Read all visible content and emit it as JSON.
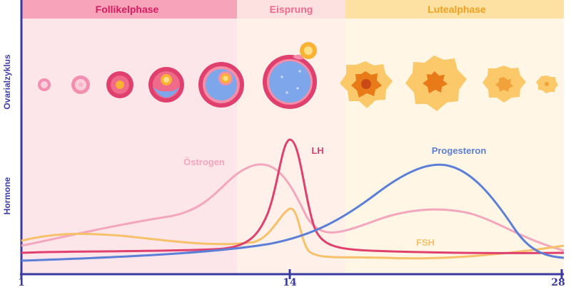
{
  "phases": [
    {
      "label": "Follikelphase",
      "bg": "#fde7ea",
      "header": "#f59ab2",
      "text": "#d81b60"
    },
    {
      "label": "Eisprung",
      "bg": "#fff0e8",
      "header": "#fde0e0",
      "text": "#f06a8a"
    },
    {
      "label": "Lutealphase",
      "bg": "#fff6e6",
      "header": "#fde3a7",
      "text": "#f0a020"
    }
  ],
  "side_labels": {
    "top": "Ovarialzyklus",
    "bottom": "Hormone"
  },
  "hormones": [
    {
      "name": "Östrogen",
      "color": "#f4a6bd"
    },
    {
      "name": "LH",
      "color": "#e0406e"
    },
    {
      "name": "Progesteron",
      "color": "#5b7fd6"
    },
    {
      "name": "FSH",
      "color": "#f7c16a"
    }
  ],
  "axis": {
    "ticks": [
      "1",
      "14",
      "28"
    ],
    "color": "#3a3aa0"
  },
  "icons": [
    "primordial-follicle-icon",
    "primary-follicle-icon",
    "secondary-follicle-icon",
    "early-antral-follicle-icon",
    "antral-follicle-icon",
    "ovulating-follicle-icon",
    "released-egg-icon",
    "corpus-luteum-early-icon",
    "corpus-luteum-mature-icon",
    "corpus-luteum-regressing-icon",
    "corpus-albicans-icon"
  ]
}
